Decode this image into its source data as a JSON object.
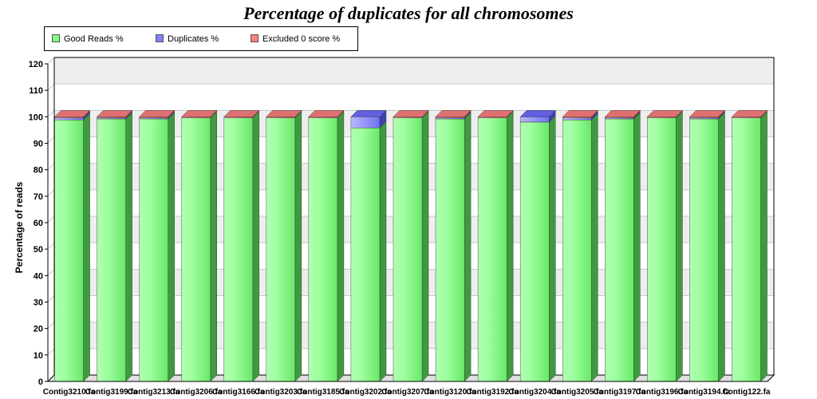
{
  "chart_data": {
    "type": "bar",
    "stacked": true,
    "style": "3d",
    "title": "Percentage of duplicates for all chromosomes",
    "xlabel": "",
    "ylabel": "Percentage of reads",
    "ylim": [
      0,
      120
    ],
    "yticks": [
      0,
      10,
      20,
      30,
      40,
      50,
      60,
      70,
      80,
      90,
      100,
      110,
      120
    ],
    "grid": true,
    "legend_position": "top-left",
    "categories": [
      "Contig3210.fa",
      "Contig3199.fa",
      "Contig3213.fa",
      "Contig3206.fa",
      "Contig3166.fa",
      "Contig3203.fa",
      "Contig3185.fa",
      "Contig3202.fa",
      "Contig3207.fa",
      "Contig3120.fa",
      "Contig3192.fa",
      "Contig3204.fa",
      "Contig3205.fa",
      "Contig3197.fa",
      "Contig3196.fa",
      "Contig3194.fa",
      "Contig122.fa"
    ],
    "series": [
      {
        "name": "Good Reads %",
        "color": "#80ff80",
        "values": [
          98.8,
          99.2,
          99.2,
          99.6,
          99.6,
          99.6,
          99.6,
          95.8,
          99.6,
          99.2,
          99.6,
          98.0,
          98.8,
          99.2,
          99.6,
          99.2,
          99.6
        ]
      },
      {
        "name": "Duplicates %",
        "color": "#8080ff",
        "values": [
          0.8,
          0.4,
          0.4,
          0.0,
          0.0,
          0.0,
          0.0,
          4.2,
          0.0,
          0.4,
          0.0,
          2.0,
          0.8,
          0.4,
          0.0,
          0.4,
          0.0
        ]
      },
      {
        "name": "Excluded 0 score %",
        "color": "#ff8080",
        "values": [
          0.4,
          0.4,
          0.4,
          0.4,
          0.4,
          0.4,
          0.4,
          0.0,
          0.4,
          0.4,
          0.4,
          0.0,
          0.4,
          0.4,
          0.4,
          0.4,
          0.4
        ]
      }
    ]
  }
}
